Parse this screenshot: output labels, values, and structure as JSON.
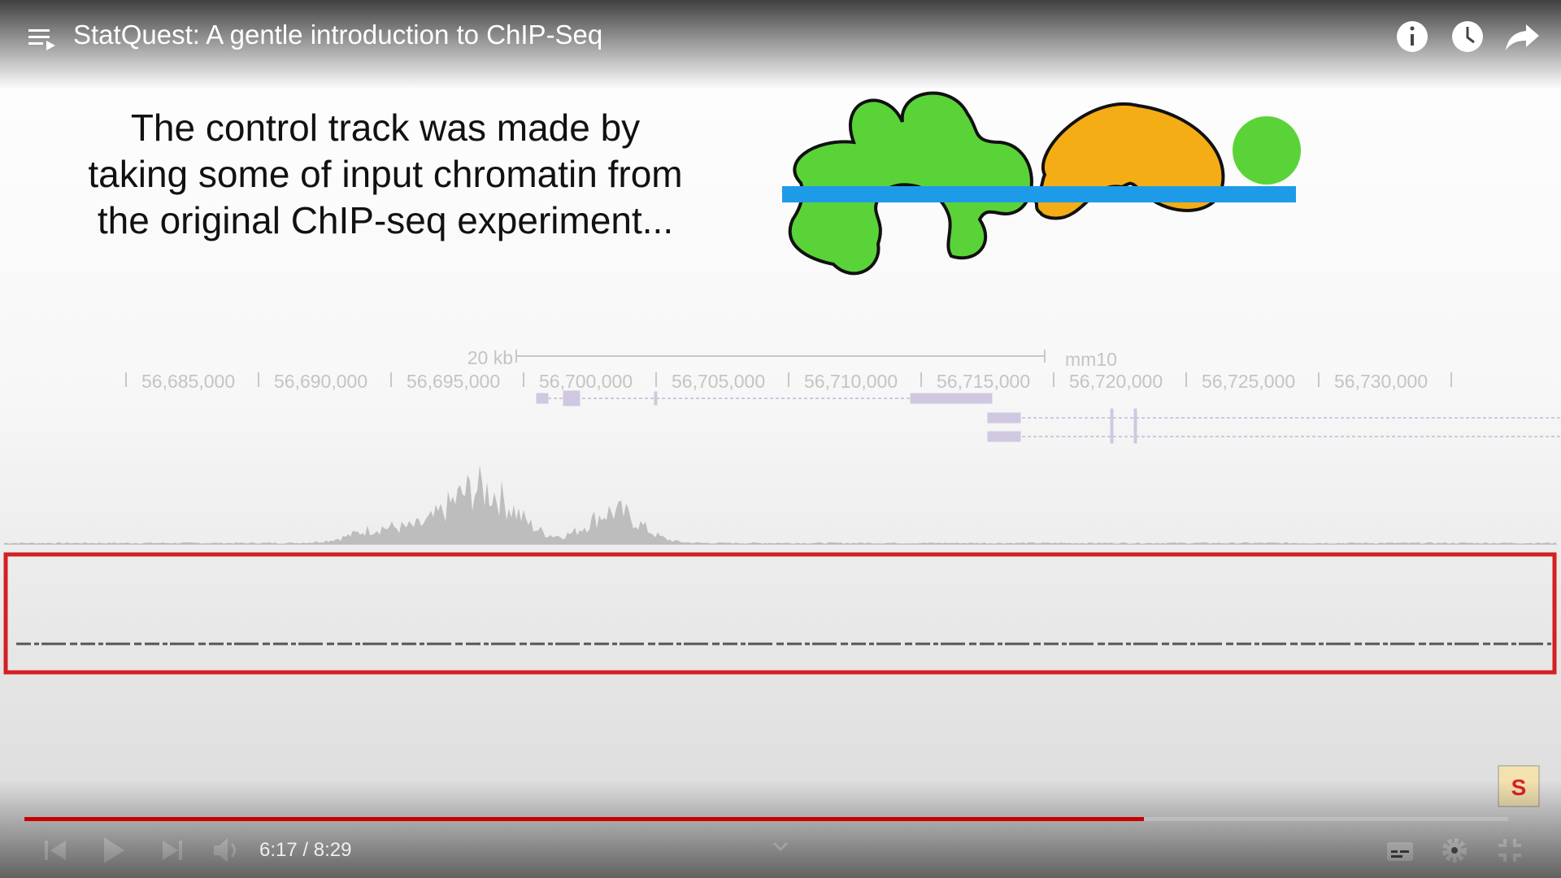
{
  "header": {
    "title": "StatQuest: A gentle introduction to ChIP-Seq"
  },
  "slide": {
    "lines": [
      "The control track was made by",
      "taking some of input chromatin from",
      "the original ChIP-seq experiment..."
    ],
    "scale_label": "20 kb",
    "assembly": "mm10",
    "coordinates": [
      "56,685,000",
      "56,690,000",
      "56,695,000",
      "56,700,000",
      "56,705,000",
      "56,710,000",
      "56,715,000",
      "56,720,000",
      "56,725,000",
      "56,730,000"
    ]
  },
  "player": {
    "time": "6:17 / 8:29"
  }
}
